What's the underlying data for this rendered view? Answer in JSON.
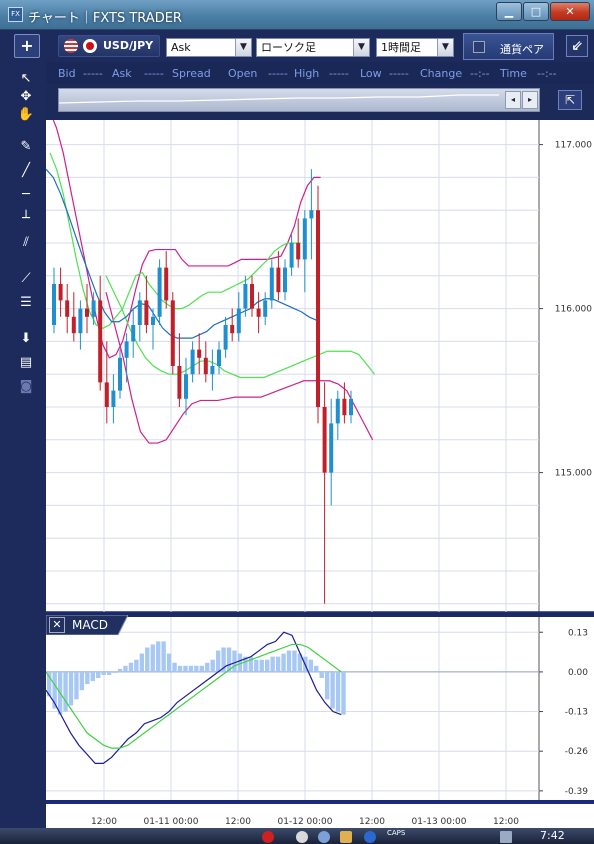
{
  "window": {
    "title": "チャート｜FXTS TRADER",
    "app_icon": "FX",
    "minimize": "▁",
    "maximize": "□",
    "close": "✕"
  },
  "toolbar": {
    "add": "+",
    "pair": "USD/JPY",
    "price_type": "Ask",
    "chart_type": "ローソク足",
    "period": "1時間足",
    "currency_button": "通貨ペア",
    "collapse": "⇙"
  },
  "info_row": {
    "bid_label": "Bid",
    "bid_value": "-----",
    "ask_label": "Ask",
    "ask_value": "-----",
    "spread_label": "Spread",
    "open_label": "Open",
    "high_label": "High",
    "high_value": "-----",
    "low_label": "Low",
    "low_value": "-----",
    "change_label": "Change",
    "change_value": "-----",
    "time_label": "Time",
    "time_value": "--:--"
  },
  "overview": {
    "left": "◂",
    "right": "▸",
    "goto_end": "⇱"
  },
  "left_tools": [
    "pointer-icon",
    "crosshair-icon",
    "hand-icon",
    "pencil-icon",
    "trend-line-icon",
    "horizontal-line-icon",
    "vertical-line-icon",
    "parallel-lines-icon",
    "fan-icon",
    "fibonacci-icon",
    "download-icon",
    "list-icon",
    "camera-icon"
  ],
  "macd": {
    "title": "MACD",
    "close": "✕"
  },
  "taskbar": {
    "caps": "CAPS",
    "clock": "7:42"
  },
  "colors": {
    "background": "#ffffff",
    "frame": "#1d2b5c",
    "up_candle": "#1f8fd0",
    "down_candle": "#c0202a",
    "bb_outer": "#d0208a",
    "bb_inner": "#50e050",
    "bb_mid": "#1e6fc0",
    "macd_line": "#1a1a9a",
    "signal_line": "#40d040",
    "histogram": "#a8c8f4"
  },
  "chart_data": [
    {
      "type": "candlestick",
      "y_ticks": [
        "117.000",
        "116.000",
        "115.000"
      ],
      "x_ticks": [
        "12:00",
        "01-11 00:00",
        "12:00",
        "01-12 00:00",
        "12:00",
        "01-13 00:00",
        "12:00"
      ],
      "ylim": [
        114.15,
        117.15
      ],
      "ohlc": [
        [
          115.9,
          116.25,
          115.85,
          116.15
        ],
        [
          116.15,
          116.25,
          115.95,
          116.05
        ],
        [
          116.05,
          116.15,
          115.85,
          115.95
        ],
        [
          115.95,
          116.1,
          115.8,
          115.85
        ],
        [
          115.85,
          116.05,
          115.75,
          116.0
        ],
        [
          116.0,
          116.15,
          115.85,
          115.95
        ],
        [
          115.95,
          116.1,
          115.9,
          116.05
        ],
        [
          116.05,
          116.2,
          115.5,
          115.55
        ],
        [
          115.55,
          115.8,
          115.3,
          115.4
        ],
        [
          115.4,
          115.6,
          115.3,
          115.5
        ],
        [
          115.5,
          115.75,
          115.45,
          115.7
        ],
        [
          115.7,
          115.85,
          115.55,
          115.8
        ],
        [
          115.8,
          116.0,
          115.7,
          115.9
        ],
        [
          115.9,
          116.1,
          115.8,
          116.05
        ],
        [
          116.05,
          116.2,
          115.85,
          115.9
        ],
        [
          115.9,
          116.0,
          115.75,
          115.95
        ],
        [
          115.95,
          116.3,
          115.9,
          116.25
        ],
        [
          116.25,
          116.35,
          116.0,
          116.05
        ],
        [
          116.05,
          116.1,
          115.6,
          115.65
        ],
        [
          115.65,
          115.85,
          115.4,
          115.45
        ],
        [
          115.45,
          115.7,
          115.35,
          115.6
        ],
        [
          115.6,
          115.8,
          115.55,
          115.75
        ],
        [
          115.75,
          115.85,
          115.6,
          115.7
        ],
        [
          115.7,
          115.8,
          115.55,
          115.6
        ],
        [
          115.6,
          115.75,
          115.5,
          115.65
        ],
        [
          115.65,
          115.8,
          115.6,
          115.75
        ],
        [
          115.75,
          115.95,
          115.7,
          115.9
        ],
        [
          115.9,
          116.0,
          115.8,
          115.85
        ],
        [
          115.85,
          116.1,
          115.8,
          116.0
        ],
        [
          116.0,
          116.2,
          115.95,
          116.15
        ],
        [
          116.15,
          116.2,
          115.95,
          116.0
        ],
        [
          116.0,
          116.1,
          115.85,
          115.95
        ],
        [
          115.95,
          116.1,
          115.9,
          116.05
        ],
        [
          116.05,
          116.3,
          116.0,
          116.25
        ],
        [
          116.25,
          116.35,
          116.05,
          116.1
        ],
        [
          116.1,
          116.3,
          116.05,
          116.25
        ],
        [
          116.25,
          116.45,
          116.2,
          116.4
        ],
        [
          116.4,
          116.55,
          116.25,
          116.3
        ],
        [
          116.3,
          116.6,
          116.1,
          116.55
        ],
        [
          116.55,
          116.85,
          116.3,
          116.6
        ],
        [
          116.6,
          116.75,
          115.3,
          115.4
        ],
        [
          115.4,
          115.55,
          114.2,
          115.0
        ],
        [
          115.0,
          115.45,
          114.8,
          115.3
        ],
        [
          115.3,
          115.5,
          115.2,
          115.45
        ],
        [
          115.45,
          115.55,
          115.3,
          115.35
        ],
        [
          115.35,
          115.5,
          115.3,
          115.45
        ]
      ],
      "bb_upper": [
        117.2,
        117.1,
        116.95,
        116.75,
        116.55,
        116.35,
        116.15,
        115.95,
        115.78,
        115.7,
        115.72,
        115.8,
        115.95,
        116.12,
        116.27,
        116.35,
        116.36,
        116.36,
        116.36,
        116.36,
        116.3,
        116.26,
        116.26,
        116.26,
        116.26,
        116.26,
        116.26,
        116.26,
        116.28,
        116.3,
        116.3,
        116.3,
        116.3,
        116.3,
        116.31,
        116.32,
        116.4,
        116.5,
        116.65,
        116.75,
        116.8,
        116.8
      ],
      "bb_inner_upper": [
        116.95,
        116.85,
        116.7,
        116.5,
        116.3,
        116.12,
        115.98,
        115.9,
        115.88,
        115.9,
        115.95,
        116.0,
        116.1,
        116.2,
        116.22,
        116.15,
        116.1,
        116.05,
        116.02,
        116.0,
        116.0,
        116.02,
        116.05,
        116.08,
        116.1,
        116.1,
        116.1,
        116.12,
        116.14,
        116.16,
        116.18,
        116.22,
        116.26,
        116.3,
        116.35,
        116.38,
        116.4,
        116.4,
        116.4
      ],
      "bb_mid": [
        116.85,
        116.8,
        116.7,
        116.58,
        116.45,
        116.32,
        116.2,
        116.08,
        115.98,
        115.92,
        115.92,
        115.95,
        116.0,
        116.03,
        116.02,
        115.95,
        115.88,
        115.84,
        115.82,
        115.82,
        115.82,
        115.84,
        115.86,
        115.9,
        115.92,
        115.94,
        115.96,
        115.98,
        116.0,
        116.04,
        116.06,
        116.06,
        116.04,
        116.02,
        116.0,
        115.98,
        115.95,
        115.93
      ],
      "bb_inner_lower": [
        116.2,
        116.1,
        116.0,
        115.88,
        115.78,
        115.7,
        115.65,
        115.62,
        115.6,
        115.6,
        115.62,
        115.65,
        115.68,
        115.68,
        115.66,
        115.62,
        115.6,
        115.58,
        115.58,
        115.58,
        115.58,
        115.6,
        115.62,
        115.64,
        115.66,
        115.68,
        115.7,
        115.72,
        115.74,
        115.74,
        115.74,
        115.74,
        115.72,
        115.66,
        115.6
      ],
      "bb_lower": [
        116.1,
        115.9,
        115.7,
        115.45,
        115.25,
        115.18,
        115.18,
        115.2,
        115.28,
        115.36,
        115.42,
        115.44,
        115.44,
        115.44,
        115.45,
        115.46,
        115.46,
        115.46,
        115.46,
        115.48,
        115.5,
        115.52,
        115.54,
        115.56,
        115.56,
        115.56,
        115.56,
        115.54,
        115.5,
        115.4,
        115.3,
        115.2
      ]
    },
    {
      "type": "macd",
      "y_ticks": [
        "0.13",
        "0.00",
        "-0.13",
        "-0.26",
        "-0.39"
      ],
      "ylim": [
        -0.42,
        0.18
      ],
      "histogram": [
        -0.08,
        -0.12,
        -0.14,
        -0.13,
        -0.11,
        -0.09,
        -0.06,
        -0.04,
        -0.03,
        -0.02,
        -0.01,
        -0.01,
        0.0,
        0.01,
        0.02,
        0.03,
        0.04,
        0.06,
        0.08,
        0.09,
        0.1,
        0.1,
        0.06,
        0.03,
        0.02,
        0.02,
        0.02,
        0.02,
        0.02,
        0.03,
        0.04,
        0.07,
        0.08,
        0.08,
        0.07,
        0.06,
        0.05,
        0.05,
        0.04,
        0.04,
        0.04,
        0.05,
        0.05,
        0.06,
        0.07,
        0.07,
        0.06,
        0.05,
        0.04,
        0.02,
        -0.02,
        -0.09,
        -0.12,
        -0.13,
        -0.14
      ],
      "macd_line": [
        -0.06,
        -0.1,
        -0.15,
        -0.2,
        -0.24,
        -0.27,
        -0.3,
        -0.3,
        -0.28,
        -0.25,
        -0.22,
        -0.2,
        -0.17,
        -0.16,
        -0.15,
        -0.13,
        -0.1,
        -0.08,
        -0.06,
        -0.04,
        -0.02,
        0.0,
        0.02,
        0.03,
        0.04,
        0.05,
        0.07,
        0.09,
        0.1,
        0.13,
        0.12,
        0.06,
        0.0,
        -0.06,
        -0.1,
        -0.13,
        -0.14
      ],
      "signal_line": [
        -0.0,
        -0.04,
        -0.08,
        -0.12,
        -0.16,
        -0.2,
        -0.22,
        -0.24,
        -0.25,
        -0.25,
        -0.24,
        -0.22,
        -0.2,
        -0.18,
        -0.16,
        -0.14,
        -0.12,
        -0.1,
        -0.08,
        -0.06,
        -0.04,
        -0.02,
        0.0,
        0.02,
        0.03,
        0.04,
        0.05,
        0.06,
        0.07,
        0.08,
        0.09,
        0.09,
        0.08,
        0.06,
        0.04,
        0.02,
        0.0
      ]
    }
  ]
}
